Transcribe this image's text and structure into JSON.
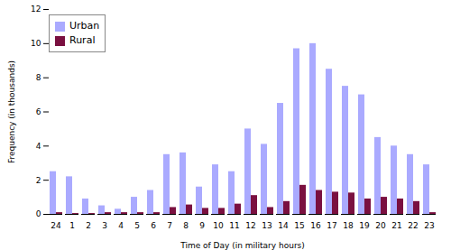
{
  "chart_data": {
    "type": "bar",
    "categories": [
      "24",
      "1",
      "2",
      "3",
      "4",
      "5",
      "6",
      "7",
      "8",
      "9",
      "10",
      "11",
      "12",
      "13",
      "14",
      "15",
      "16",
      "17",
      "18",
      "19",
      "20",
      "21",
      "22",
      "23"
    ],
    "series": [
      {
        "name": "Urban",
        "color": "#aaaaff",
        "values": [
          2.5,
          2.2,
          0.9,
          0.5,
          0.3,
          1.0,
          1.4,
          3.5,
          3.6,
          1.6,
          2.9,
          2.5,
          5.0,
          4.1,
          6.5,
          9.7,
          10.0,
          8.5,
          7.5,
          7.0,
          4.5,
          4.0,
          3.5,
          2.9
        ]
      },
      {
        "name": "Rural",
        "color": "#7a1040",
        "values": [
          0.1,
          0.05,
          0.05,
          0.1,
          0.1,
          0.1,
          0.1,
          0.4,
          0.55,
          0.35,
          0.35,
          0.6,
          1.1,
          0.4,
          0.75,
          1.7,
          1.4,
          1.3,
          1.25,
          0.9,
          1.0,
          0.9,
          0.75,
          0.1
        ]
      }
    ],
    "xlabel": "Time of Day (in military hours)",
    "ylabel": "Frequency (in thousands)",
    "ylim": [
      0,
      12
    ],
    "yticks": [
      0,
      2,
      4,
      6,
      8,
      10,
      12
    ],
    "grid": false,
    "legend": "upper left"
  }
}
